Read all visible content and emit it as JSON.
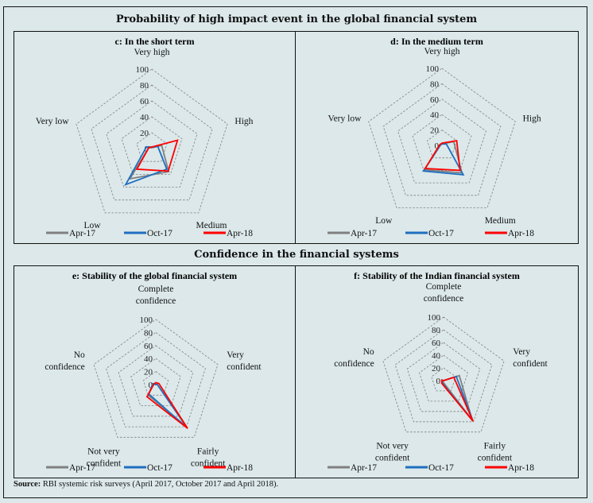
{
  "section1_title": "Probability of high impact event in the global financial system",
  "section2_title": "Confidence in the financial systems",
  "source_label": "Source:",
  "source_text": "RBI systemic risk surveys (April 2017, October 2017 and April 2018).",
  "colors": {
    "Apr-17": "#808080",
    "Oct-17": "#1f6fc0",
    "Apr-18": "#ff0000",
    "grid": "#808080"
  },
  "chart_data": [
    {
      "id": "c",
      "type": "radar",
      "title": "c: In the short term",
      "axes": [
        "Very high",
        "High",
        "Medium",
        "Low",
        "Very low"
      ],
      "rlim": [
        0,
        100
      ],
      "rticks": [
        0,
        20,
        40,
        60,
        80,
        100
      ],
      "grid": true,
      "legend": "bottom",
      "series": [
        {
          "name": "Apr-17",
          "values": [
            1,
            13,
            36,
            47,
            4
          ]
        },
        {
          "name": "Oct-17",
          "values": [
            2,
            8,
            32,
            56,
            7
          ]
        },
        {
          "name": "Apr-18",
          "values": [
            2,
            34,
            35,
            32,
            4
          ]
        }
      ]
    },
    {
      "id": "d",
      "type": "radar",
      "title": "d: In the medium term",
      "axes": [
        "Very high",
        "High",
        "Medium",
        "Low",
        "Very low"
      ],
      "rlim": [
        0,
        100
      ],
      "rticks": [
        0,
        20,
        40,
        60,
        80,
        100
      ],
      "grid": true,
      "legend": "bottom",
      "series": [
        {
          "name": "Apr-17",
          "values": [
            2,
            16,
            44,
            39,
            2
          ]
        },
        {
          "name": "Oct-17",
          "values": [
            2,
            6,
            47,
            41,
            2
          ]
        },
        {
          "name": "Apr-18",
          "values": [
            3,
            20,
            40,
            37,
            3
          ]
        }
      ]
    },
    {
      "id": "e",
      "type": "radar",
      "title": "e: Stability of the global financial system",
      "axes": [
        "Complete confidence",
        "Very confident",
        "Fairly confident",
        "Not very confident",
        "No confidence"
      ],
      "rlim": [
        0,
        100
      ],
      "rticks": [
        0,
        20,
        40,
        60,
        80,
        100
      ],
      "grid": true,
      "legend": "bottom",
      "series": [
        {
          "name": "Apr-17",
          "values": [
            0,
            2,
            79,
            20,
            4
          ]
        },
        {
          "name": "Oct-17",
          "values": [
            0,
            2,
            83,
            18,
            5
          ]
        },
        {
          "name": "Apr-18",
          "values": [
            3,
            5,
            83,
            23,
            3
          ]
        }
      ]
    },
    {
      "id": "f",
      "type": "radar",
      "title": "f: Stability of the Indian financial system",
      "axes": [
        "Complete confidence",
        "Very confident",
        "Fairly confident",
        "Not very confident",
        "No confidence"
      ],
      "rlim": [
        0,
        100
      ],
      "rticks": [
        0,
        20,
        40,
        60,
        80,
        100
      ],
      "grid": true,
      "legend": "bottom",
      "series": [
        {
          "name": "Apr-17",
          "values": [
            0,
            26,
            77,
            2,
            2
          ]
        },
        {
          "name": "Oct-17",
          "values": [
            0,
            21,
            79,
            4,
            2
          ]
        },
        {
          "name": "Apr-18",
          "values": [
            0,
            17,
            79,
            5,
            3
          ]
        }
      ]
    }
  ]
}
